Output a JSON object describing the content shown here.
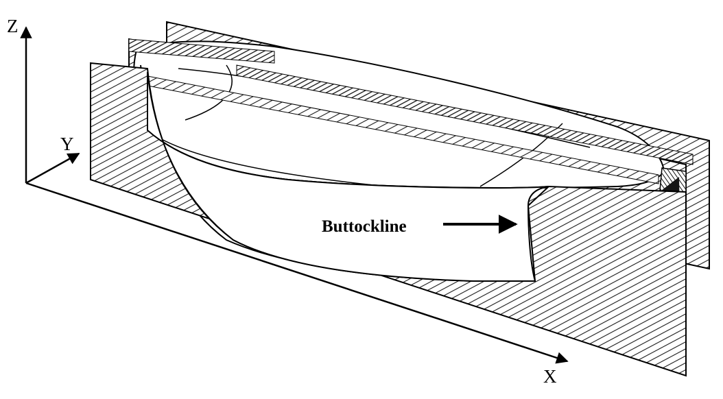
{
  "axes": {
    "z": "Z",
    "y": "Y",
    "x": "X"
  },
  "annotation": {
    "text": "Buttockline"
  },
  "colors": {
    "ink": "#000000",
    "paper": "#ffffff",
    "hatch": "#1a1a1a"
  }
}
